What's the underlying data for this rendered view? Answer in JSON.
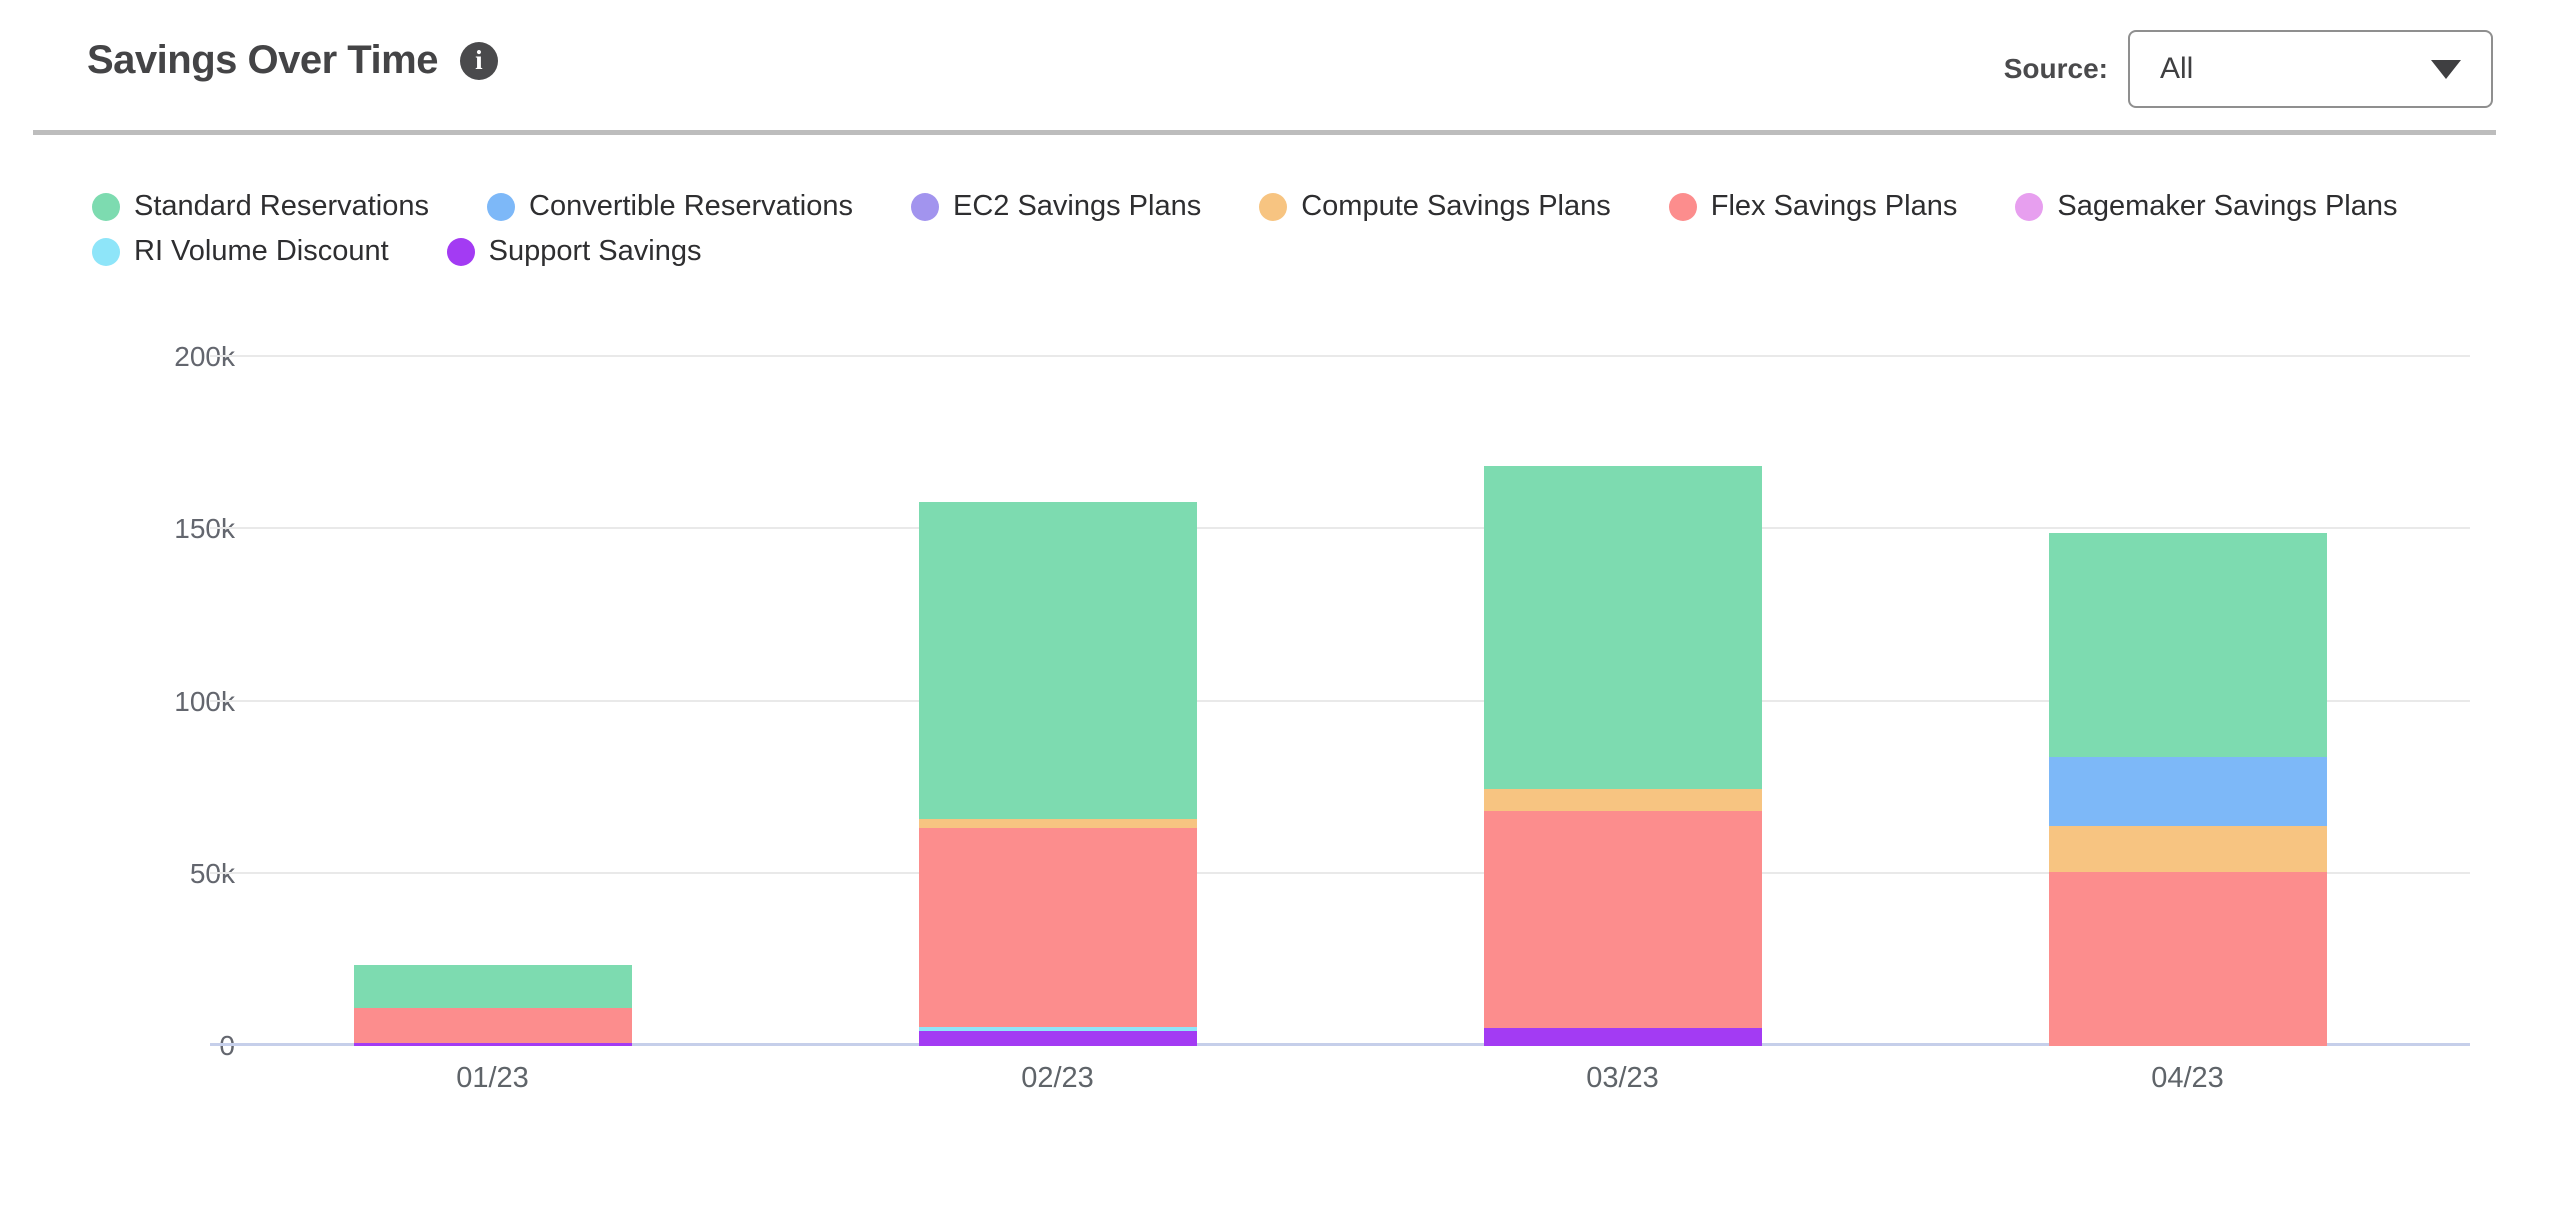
{
  "header": {
    "title": "Savings Over Time",
    "source_label": "Source:",
    "source_value": "All"
  },
  "colors": {
    "title_text": "#444446",
    "axis_text": "#63666e",
    "gridline": "#e9e9e9",
    "baseline": "#c6cfea",
    "divider": "#bdbdbd"
  },
  "chart_data": {
    "type": "bar",
    "stacked": true,
    "title": "Savings Over Time",
    "xlabel": "",
    "ylabel": "",
    "categories": [
      "01/23",
      "02/23",
      "03/23",
      "04/23"
    ],
    "series": [
      {
        "name": "Standard Reservations",
        "color": "#7ddbb0",
        "values": [
          12500,
          92000,
          94000,
          65000
        ]
      },
      {
        "name": "Convertible Reservations",
        "color": "#7db8f8",
        "values": [
          0,
          0,
          0,
          20000
        ]
      },
      {
        "name": "EC2 Savings Plans",
        "color": "#a294ee",
        "values": [
          0,
          0,
          0,
          0
        ]
      },
      {
        "name": "Compute Savings Plans",
        "color": "#f7c481",
        "values": [
          0,
          2600,
          6300,
          13400
        ]
      },
      {
        "name": "Flex Savings Plans",
        "color": "#fc8d8d",
        "values": [
          10000,
          58000,
          63000,
          50500
        ]
      },
      {
        "name": "Sagemaker Savings Plans",
        "color": "#e79fef",
        "values": [
          0,
          0,
          0,
          0
        ]
      },
      {
        "name": "RI Volume Discount",
        "color": "#8ee5f9",
        "values": [
          0,
          1100,
          0,
          0
        ]
      },
      {
        "name": "Support Savings",
        "color": "#a33bf3",
        "values": [
          1000,
          4300,
          5200,
          0
        ]
      }
    ],
    "stack_order_bottom_to_top": [
      "Support Savings",
      "RI Volume Discount",
      "Sagemaker Savings Plans",
      "Flex Savings Plans",
      "Compute Savings Plans",
      "EC2 Savings Plans",
      "Convertible Reservations",
      "Standard Reservations"
    ],
    "totals": [
      23500,
      157900,
      168500,
      148900
    ],
    "y_ticks": [
      {
        "label": "0",
        "value": 0
      },
      {
        "label": "50k",
        "value": 50000
      },
      {
        "label": "100k",
        "value": 100000
      },
      {
        "label": "150k",
        "value": 150000
      },
      {
        "label": "200k",
        "value": 200000
      }
    ],
    "ylim": [
      0,
      200000
    ],
    "grid": true,
    "legend_position": "top"
  }
}
